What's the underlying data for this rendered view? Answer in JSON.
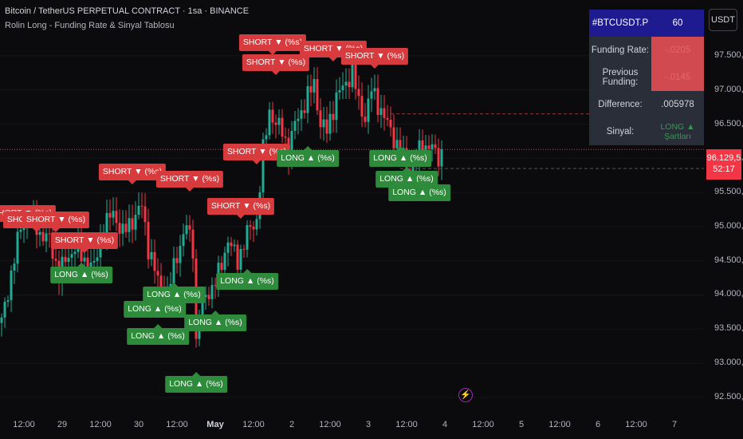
{
  "header": {
    "symbol_line": "Bitcoin / TetherUS PERPETUAL CONTRACT · 1sa · BINANCE",
    "indicator_line": "Rolin Long - Funding Rate & Sinyal Tablosu"
  },
  "currency_button": "USDT",
  "colors": {
    "up": "#22ab94",
    "down": "#f23645",
    "short_label": "#d73b3e",
    "long_label": "#2e8b3b",
    "table_header": "#1e1a8f"
  },
  "last_price": {
    "value": "96.129,5",
    "countdown": "52:17",
    "value_num": 96129.5
  },
  "table": {
    "header": {
      "symbol": "#BTCUSDT.P",
      "value": "60"
    },
    "rows": [
      {
        "label": "Funding Rate:",
        "value": "-.0205",
        "style": "neg"
      },
      {
        "label": "Previous Funding:",
        "value": "-.0145",
        "style": "neg"
      },
      {
        "label": "Difference:",
        "value": ".005978",
        "style": "plain"
      },
      {
        "label": "Sinyal:",
        "value": "LONG ▲ Şartları",
        "style": "sinyal"
      }
    ]
  },
  "chart_data": {
    "type": "candlestick",
    "y_ticks": [
      "97.500,0",
      "97.000,0",
      "96.500,0",
      "96.000,0",
      "95.500,0",
      "95.000,0",
      "94.500,0",
      "94.000,0",
      "93.500,0",
      "93.000,0",
      "92.500,0"
    ],
    "y_tick_values": [
      97500,
      97000,
      96500,
      96000,
      95500,
      95000,
      94500,
      94000,
      93500,
      93000,
      92500
    ],
    "ylim": [
      92300,
      98200
    ],
    "x_ticks": [
      {
        "label": "12:00",
        "i": 7,
        "bold": false
      },
      {
        "label": "29",
        "i": 19,
        "bold": false
      },
      {
        "label": "12:00",
        "i": 31,
        "bold": false
      },
      {
        "label": "30",
        "i": 43,
        "bold": false
      },
      {
        "label": "12:00",
        "i": 55,
        "bold": false
      },
      {
        "label": "May",
        "i": 67,
        "bold": true
      },
      {
        "label": "12:00",
        "i": 79,
        "bold": false
      },
      {
        "label": "2",
        "i": 91,
        "bold": false
      },
      {
        "label": "12:00",
        "i": 103,
        "bold": false
      },
      {
        "label": "3",
        "i": 115,
        "bold": false
      },
      {
        "label": "12:00",
        "i": 127,
        "bold": false
      },
      {
        "label": "4",
        "i": 139,
        "bold": false
      },
      {
        "label": "12:00",
        "i": 151,
        "bold": false
      },
      {
        "label": "5",
        "i": 163,
        "bold": false
      },
      {
        "label": "12:00",
        "i": 175,
        "bold": false
      },
      {
        "label": "6",
        "i": 187,
        "bold": false
      },
      {
        "label": "12:00",
        "i": 199,
        "bold": false
      },
      {
        "label": "7",
        "i": 211,
        "bold": false
      }
    ],
    "anchors": [
      [
        0,
        93600
      ],
      [
        3,
        94300
      ],
      [
        6,
        95000
      ],
      [
        9,
        95200
      ],
      [
        12,
        94900
      ],
      [
        15,
        94800
      ],
      [
        18,
        94300
      ],
      [
        20,
        94500
      ],
      [
        23,
        94700
      ],
      [
        26,
        94500
      ],
      [
        29,
        94400
      ],
      [
        32,
        95000
      ],
      [
        35,
        95200
      ],
      [
        38,
        94900
      ],
      [
        41,
        95100
      ],
      [
        44,
        95300
      ],
      [
        46,
        94700
      ],
      [
        49,
        94200
      ],
      [
        52,
        94000
      ],
      [
        55,
        94600
      ],
      [
        58,
        95000
      ],
      [
        60,
        94700
      ],
      [
        61,
        93300
      ],
      [
        62,
        93700
      ],
      [
        64,
        94000
      ],
      [
        66,
        94100
      ],
      [
        68,
        94300
      ],
      [
        71,
        94800
      ],
      [
        74,
        94500
      ],
      [
        77,
        94900
      ],
      [
        80,
        95100
      ],
      [
        82,
        96100
      ],
      [
        84,
        96700
      ],
      [
        86,
        96500
      ],
      [
        88,
        96400
      ],
      [
        90,
        96100
      ],
      [
        92,
        96500
      ],
      [
        95,
        96800
      ],
      [
        98,
        97100
      ],
      [
        100,
        96500
      ],
      [
        102,
        96400
      ],
      [
        105,
        96900
      ],
      [
        108,
        97100
      ],
      [
        110,
        97300
      ],
      [
        112,
        96800
      ],
      [
        114,
        96600
      ],
      [
        116,
        97000
      ],
      [
        119,
        96700
      ],
      [
        122,
        96400
      ],
      [
        125,
        96100
      ],
      [
        128,
        95800
      ],
      [
        131,
        96100
      ],
      [
        134,
        96200
      ],
      [
        137,
        96000
      ],
      [
        138,
        96120
      ]
    ],
    "series": [
      {
        "name": "SHORT ▼ (%s)",
        "points": [
          {
            "i": 1,
            "y": 95200
          },
          {
            "i": 11,
            "y": 95100
          },
          {
            "i": 17,
            "y": 95100
          },
          {
            "i": 26,
            "y": 94800
          },
          {
            "i": 41,
            "y": 95800
          },
          {
            "i": 59,
            "y": 95700
          },
          {
            "i": 75,
            "y": 95300
          },
          {
            "i": 80,
            "y": 96100
          },
          {
            "i": 85,
            "y": 97700
          },
          {
            "i": 86,
            "y": 97400
          },
          {
            "i": 104,
            "y": 97600
          },
          {
            "i": 117,
            "y": 97500
          }
        ]
      },
      {
        "name": "LONG ▲ (%s)",
        "points": [
          {
            "i": 25,
            "y": 94300
          },
          {
            "i": 48,
            "y": 93800
          },
          {
            "i": 49,
            "y": 93400
          },
          {
            "i": 54,
            "y": 94000
          },
          {
            "i": 61,
            "y": 92700
          },
          {
            "i": 67,
            "y": 93600
          },
          {
            "i": 77,
            "y": 94200
          },
          {
            "i": 96,
            "y": 96000
          },
          {
            "i": 125,
            "y": 96000
          },
          {
            "i": 127,
            "y": 95700
          },
          {
            "i": 131,
            "y": 95500
          }
        ]
      }
    ]
  }
}
